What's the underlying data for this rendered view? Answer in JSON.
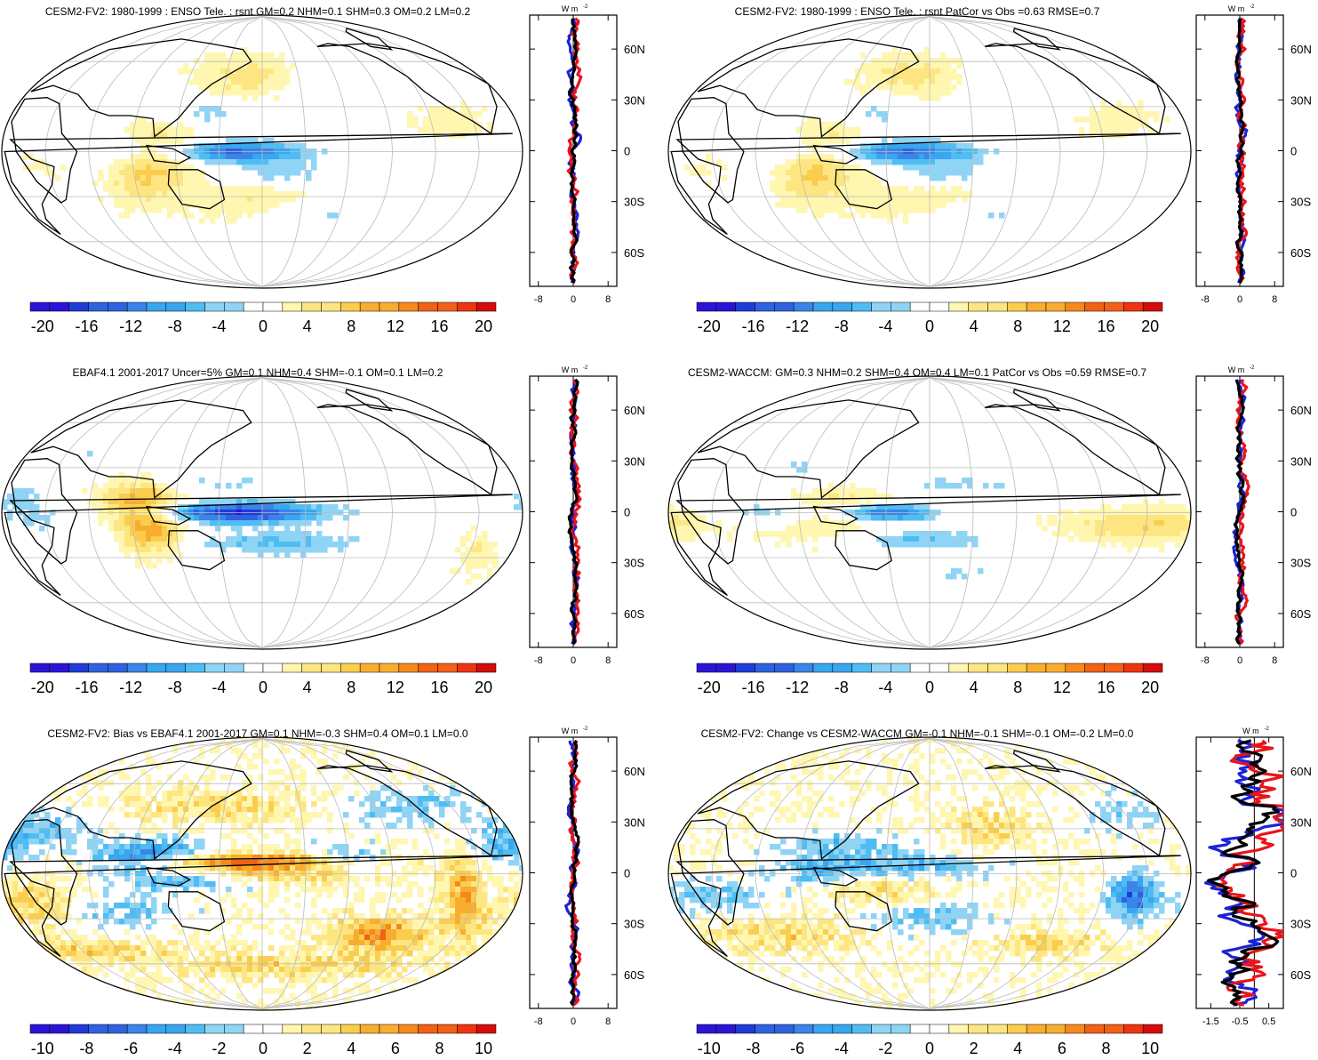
{
  "chart_data": [
    {
      "type": "heatmap",
      "title": "CESM2-FV2: 1980-1999 : ENSO Tele. : rsnt GM=0.2 NHM=0.1 SHM=0.3 OM=0.2 LM=0.2",
      "colorbar_ticks": [
        "-20",
        "-16",
        "-12",
        "-8",
        "-4",
        "0",
        "4",
        "8",
        "12",
        "16",
        "20"
      ],
      "zonal": {
        "units_base": "W m",
        "units_exp": "-2",
        "xticks": [
          "-8",
          "0",
          "8"
        ],
        "xlim": [
          -10,
          10
        ],
        "lat_ticks": [
          "60N",
          "30N",
          "0",
          "30S",
          "60S"
        ]
      }
    },
    {
      "type": "heatmap",
      "title": "CESM2-FV2: 1980-1999 : ENSO Tele. : rsnt PatCor vs Obs =0.63 RMSE=0.7",
      "colorbar_ticks": [
        "-20",
        "-16",
        "-12",
        "-8",
        "-4",
        "0",
        "4",
        "8",
        "12",
        "16",
        "20"
      ],
      "zonal": {
        "units_base": "W m",
        "units_exp": "-2",
        "xticks": [
          "-8",
          "0",
          "8"
        ],
        "xlim": [
          -10,
          10
        ],
        "lat_ticks": [
          "60N",
          "30N",
          "0",
          "30S",
          "60S"
        ]
      }
    },
    {
      "type": "heatmap",
      "title": "EBAF4.1 2001-2017 Uncer=5% GM=0.1 NHM=0.4 SHM=-0.1 OM=0.1 LM=0.2",
      "colorbar_ticks": [
        "-20",
        "-16",
        "-12",
        "-8",
        "-4",
        "0",
        "4",
        "8",
        "12",
        "16",
        "20"
      ],
      "zonal": {
        "units_base": "W m",
        "units_exp": "-2",
        "xticks": [
          "-8",
          "0",
          "8"
        ],
        "xlim": [
          -10,
          10
        ],
        "lat_ticks": [
          "60N",
          "30N",
          "0",
          "30S",
          "60S"
        ]
      }
    },
    {
      "type": "heatmap",
      "title": "CESM2-WACCM: GM=0.3 NHM=0.2 SHM=0.4 OM=0.4 LM=0.1 PatCor vs Obs =0.59 RMSE=0.7",
      "colorbar_ticks": [
        "-20",
        "-16",
        "-12",
        "-8",
        "-4",
        "0",
        "4",
        "8",
        "12",
        "16",
        "20"
      ],
      "zonal": {
        "units_base": "W m",
        "units_exp": "-2",
        "xticks": [
          "-8",
          "0",
          "8"
        ],
        "xlim": [
          -10,
          10
        ],
        "lat_ticks": [
          "60N",
          "30N",
          "0",
          "30S",
          "60S"
        ]
      }
    },
    {
      "type": "heatmap",
      "title": "CESM2-FV2: Bias vs EBAF4.1 2001-2017 GM=0.1 NHM=-0.3 SHM=0.4 OM=0.1 LM=0.0",
      "colorbar_ticks": [
        "-10",
        "-8",
        "-6",
        "-4",
        "-2",
        "0",
        "2",
        "4",
        "6",
        "8",
        "10"
      ],
      "zonal": {
        "units_base": "W m",
        "units_exp": "-2",
        "xticks": [
          "-8",
          "0",
          "8"
        ],
        "xlim": [
          -10,
          10
        ],
        "lat_ticks": [
          "60N",
          "30N",
          "0",
          "30S",
          "60S"
        ]
      }
    },
    {
      "type": "heatmap",
      "title": "CESM2-FV2: Change vs CESM2-WACCM GM=-0.1 NHM=-0.1 SHM=-0.1 OM=-0.2 LM=0.0",
      "colorbar_ticks": [
        "-10",
        "-8",
        "-6",
        "-4",
        "-2",
        "0",
        "2",
        "4",
        "6",
        "8",
        "10"
      ],
      "zonal": {
        "units_base": "W m",
        "units_exp": "-2",
        "xticks": [
          "-1.5",
          "-0.5",
          "0.5"
        ],
        "xlim": [
          -2.0,
          1.0
        ],
        "lat_ticks": [
          "60N",
          "30N",
          "0",
          "30S",
          "60S"
        ]
      }
    }
  ],
  "colors": {
    "palette": [
      "#2b14d6",
      "#1f3bd8",
      "#2f62e0",
      "#3b84e8",
      "#38a6f0",
      "#4fbdf3",
      "#8fd4f5",
      "#ffffff",
      "#ffffff",
      "#fff6b0",
      "#fde681",
      "#fbcd4f",
      "#f9ad2f",
      "#f6891d",
      "#f26116",
      "#ee3411",
      "#d40c0c"
    ],
    "model_line": "#000000",
    "obs_line": "#e8141a",
    "alt_line": "#1b22d6",
    "land": "#000000",
    "graticule": "#bbbbbb"
  }
}
